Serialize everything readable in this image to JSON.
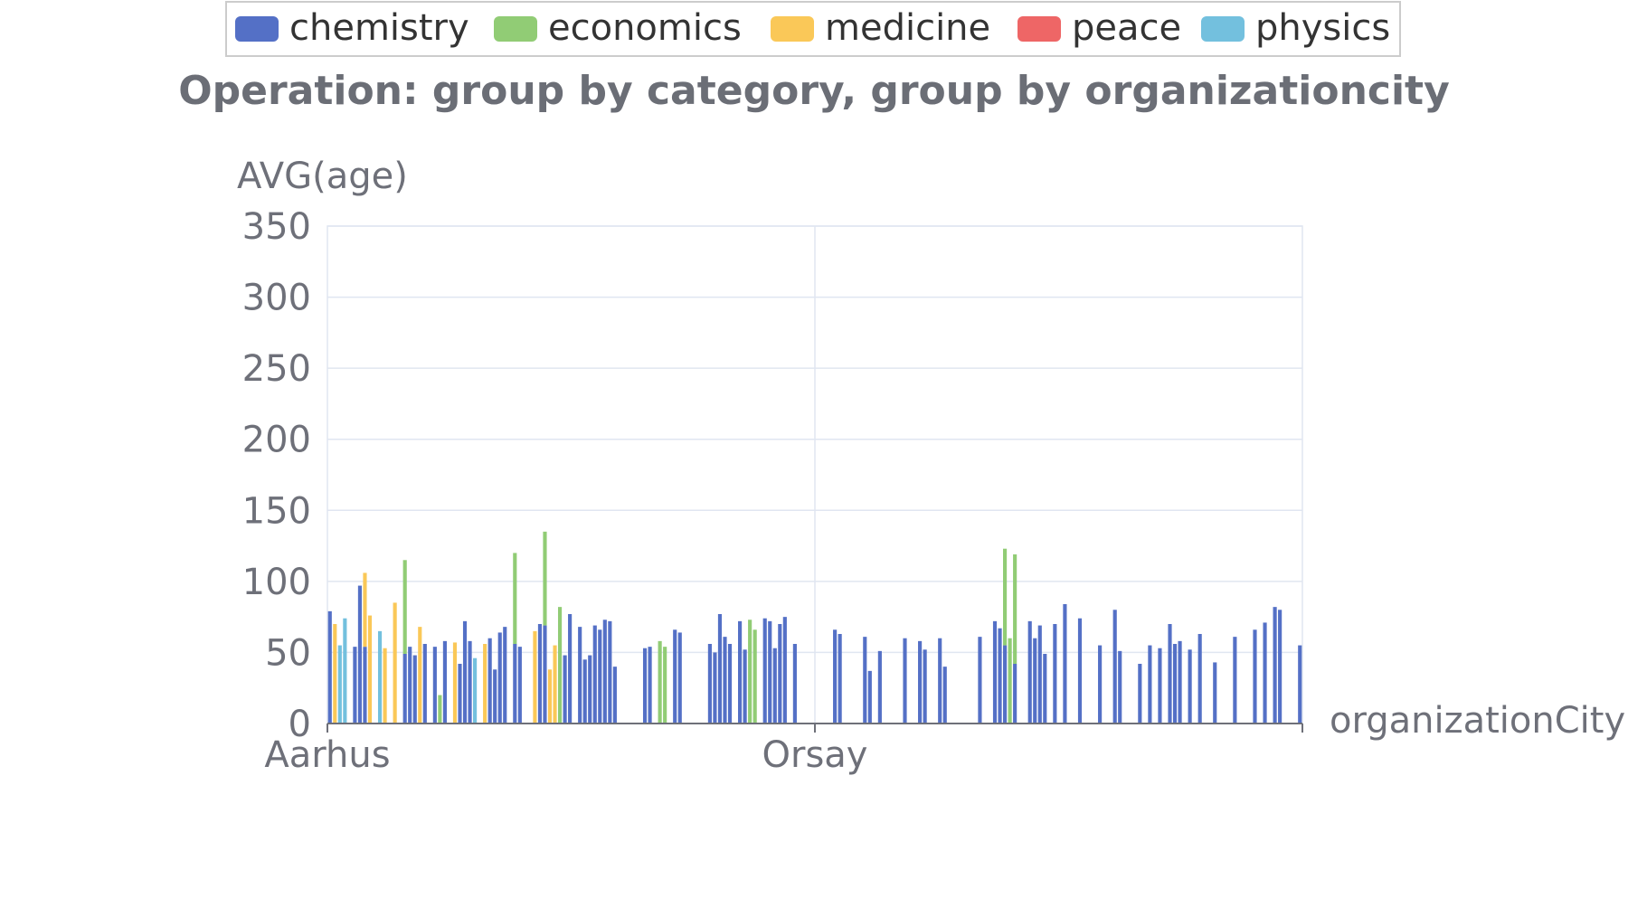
{
  "chart_data": {
    "type": "bar",
    "stacked": true,
    "title": "Operation: group by category, group by organizationcity",
    "ylabel": "AVG(age)",
    "xlabel": "organizationCity",
    "ylim": [
      0,
      350
    ],
    "yticks": [
      0,
      50,
      100,
      150,
      200,
      250,
      300,
      350
    ],
    "x_tick_labels": [
      "Aarhus",
      "Orsay"
    ],
    "legend_position": "top-center",
    "series": [
      {
        "name": "chemistry",
        "color": "#5470c6",
        "values": [
          79,
          0,
          0,
          0,
          0,
          54,
          97,
          54,
          0,
          0,
          0,
          0,
          0,
          0,
          0,
          49,
          54,
          48,
          0,
          56,
          0,
          54,
          0,
          58,
          0,
          0,
          42,
          72,
          58,
          0,
          0,
          0,
          60,
          38,
          64,
          68,
          0,
          56,
          54,
          0,
          0,
          0,
          70,
          69,
          0,
          0,
          0,
          48,
          77,
          0,
          68,
          45,
          48,
          69,
          66,
          73,
          72,
          40,
          0,
          0,
          0,
          0,
          0,
          53,
          54,
          0,
          0,
          0,
          0,
          66,
          64,
          0,
          0,
          0,
          0,
          0,
          56,
          50,
          77,
          61,
          56,
          0,
          72,
          52,
          0,
          0,
          0,
          74,
          72,
          53,
          70,
          75,
          0,
          56,
          0,
          0,
          0,
          0,
          0,
          0,
          0,
          66,
          63,
          0,
          0,
          0,
          0,
          61,
          37,
          0,
          51,
          0,
          0,
          0,
          0,
          60,
          0,
          0,
          58,
          52,
          0,
          0,
          60,
          40,
          0,
          0,
          0,
          0,
          0,
          0,
          61,
          0,
          0,
          72,
          67,
          55,
          0,
          42,
          0,
          0,
          72,
          60,
          69,
          49,
          0,
          70,
          0,
          84,
          0,
          0,
          74,
          0,
          0,
          0,
          55,
          0,
          0,
          80,
          51,
          0,
          0,
          0,
          42,
          0,
          55,
          0,
          53,
          0,
          70,
          56,
          58,
          0,
          52,
          0,
          63,
          0,
          0,
          43,
          0,
          0,
          0,
          61,
          0,
          0,
          0,
          66,
          0,
          71,
          0,
          82,
          80,
          0,
          0,
          0,
          55
        ]
      },
      {
        "name": "economics",
        "color": "#91cc75",
        "values": [
          0,
          0,
          0,
          0,
          0,
          0,
          0,
          0,
          0,
          0,
          0,
          0,
          0,
          0,
          0,
          66,
          0,
          0,
          0,
          0,
          0,
          0,
          20,
          0,
          0,
          0,
          0,
          0,
          0,
          0,
          0,
          0,
          0,
          0,
          0,
          0,
          0,
          64,
          0,
          0,
          0,
          0,
          0,
          66,
          0,
          0,
          82,
          0,
          0,
          0,
          0,
          0,
          0,
          0,
          0,
          0,
          0,
          0,
          0,
          0,
          0,
          0,
          0,
          0,
          0,
          0,
          58,
          54,
          0,
          0,
          0,
          0,
          0,
          0,
          0,
          0,
          0,
          0,
          0,
          0,
          0,
          0,
          0,
          0,
          73,
          66,
          0,
          0,
          0,
          0,
          0,
          0,
          0,
          0,
          0,
          0,
          0,
          0,
          0,
          0,
          0,
          0,
          0,
          0,
          0,
          0,
          0,
          0,
          0,
          0,
          0,
          0,
          0,
          0,
          0,
          0,
          0,
          0,
          0,
          0,
          0,
          0,
          0,
          0,
          0,
          0,
          0,
          0,
          0,
          0,
          0,
          0,
          0,
          0,
          0,
          68,
          60,
          77,
          0,
          0,
          0,
          0,
          0,
          0,
          0,
          0,
          0,
          0,
          0,
          0,
          0,
          0,
          0,
          0,
          0,
          0,
          0,
          0,
          0,
          0,
          0,
          0,
          0,
          0,
          0,
          0,
          0,
          0,
          0,
          0,
          0,
          0,
          0,
          0,
          0,
          0,
          0,
          0,
          0,
          0,
          0,
          0,
          0,
          0,
          0,
          0,
          0,
          0,
          0,
          0,
          0,
          0,
          0,
          0,
          0,
          0,
          0
        ]
      },
      {
        "name": "medicine",
        "color": "#fac858",
        "values": [
          0,
          70,
          0,
          0,
          0,
          0,
          0,
          52,
          76,
          0,
          0,
          53,
          0,
          85,
          0,
          0,
          0,
          0,
          68,
          0,
          0,
          0,
          0,
          0,
          0,
          57,
          0,
          0,
          0,
          0,
          0,
          56,
          0,
          0,
          0,
          0,
          0,
          0,
          0,
          0,
          0,
          65,
          0,
          0,
          38,
          55,
          0,
          0,
          0,
          0,
          0,
          0,
          0,
          0,
          0,
          0,
          0,
          0,
          0,
          0,
          0,
          0,
          0,
          0,
          0,
          0,
          0,
          0,
          0,
          0,
          0,
          0,
          0,
          0,
          0,
          0,
          0,
          0,
          0,
          0,
          0,
          0,
          0,
          0,
          0,
          0,
          0,
          0,
          0,
          0,
          0,
          0,
          0,
          0,
          0,
          0,
          0,
          0,
          0,
          0,
          0,
          0,
          0,
          0,
          0,
          0,
          0,
          0,
          0,
          0,
          0,
          0,
          0,
          0,
          0,
          0,
          0,
          0,
          0,
          0,
          0,
          0,
          0,
          0,
          0,
          0,
          0,
          0,
          0,
          0,
          0,
          0,
          0,
          0,
          0,
          0,
          0,
          0,
          0,
          0,
          0,
          0,
          0,
          0,
          0,
          0,
          0,
          0,
          0,
          0,
          0,
          0,
          0,
          0,
          0,
          0,
          0,
          0,
          0,
          0,
          0,
          0,
          0,
          0,
          0,
          0,
          0,
          0,
          0,
          0,
          0,
          0,
          0,
          0,
          0,
          0,
          0,
          0,
          0,
          0,
          0,
          0,
          0,
          0,
          0,
          0,
          0,
          0,
          0,
          0,
          0,
          0,
          0,
          0,
          0,
          0,
          0,
          0,
          0,
          0,
          0,
          0,
          0,
          0,
          0,
          0,
          0
        ]
      },
      {
        "name": "peace",
        "color": "#ee6666",
        "values": [
          0,
          0,
          0,
          0,
          0,
          0,
          0,
          0,
          0,
          0,
          0,
          0,
          0,
          0,
          0,
          0,
          0,
          0,
          0,
          0,
          0,
          0,
          0,
          0,
          0,
          0,
          0,
          0,
          0,
          0,
          0,
          0,
          0,
          0,
          0,
          0,
          0,
          0,
          0,
          0,
          0,
          0,
          0,
          0,
          0,
          0,
          0,
          0,
          0,
          0,
          0,
          0,
          0,
          0,
          0,
          0,
          0,
          0,
          0,
          0,
          0,
          0,
          0,
          0,
          0,
          0,
          0,
          0,
          0,
          0,
          0,
          0,
          0,
          0,
          0,
          0,
          0,
          0,
          0,
          0,
          0,
          0,
          0,
          0,
          0,
          0,
          0,
          0,
          0,
          0,
          0,
          0,
          0,
          0,
          0,
          0,
          0,
          0,
          0,
          0,
          0,
          0,
          0,
          0,
          0,
          0,
          0,
          0,
          0,
          0,
          0,
          0,
          0,
          0,
          0,
          0,
          0,
          0,
          0,
          0,
          0,
          0,
          0,
          0,
          0,
          0,
          0,
          0,
          0,
          0,
          0,
          0,
          0,
          0,
          0,
          0,
          0,
          0,
          0,
          0,
          0,
          0,
          0,
          0,
          0,
          0,
          0,
          0,
          0,
          0,
          0,
          0,
          0,
          0,
          0,
          0,
          0,
          0,
          0,
          0,
          0,
          0,
          0,
          0,
          0,
          0,
          0,
          0,
          0,
          0,
          0,
          0,
          0,
          0,
          0,
          0,
          0,
          0,
          0,
          0,
          0,
          0,
          0,
          0,
          0,
          0,
          0,
          0,
          0,
          0,
          0,
          0,
          0,
          0,
          0,
          0,
          0,
          0,
          0,
          0,
          0,
          0,
          0,
          0,
          0,
          0,
          0
        ]
      },
      {
        "name": "physics",
        "color": "#73c0de",
        "values": [
          0,
          0,
          55,
          74,
          0,
          0,
          0,
          0,
          0,
          0,
          65,
          0,
          0,
          0,
          0,
          0,
          0,
          0,
          0,
          0,
          0,
          0,
          0,
          0,
          0,
          0,
          0,
          0,
          0,
          46,
          0,
          0,
          0,
          0,
          0,
          0,
          0,
          0,
          0,
          0,
          0,
          0,
          0,
          0,
          0,
          0,
          0,
          0,
          0,
          0,
          0,
          0,
          0,
          0,
          0,
          0,
          0,
          0,
          0,
          0,
          0,
          0,
          0,
          0,
          0,
          0,
          0,
          0,
          0,
          0,
          0,
          0,
          0,
          0,
          0,
          0,
          0,
          0,
          0,
          0,
          0,
          0,
          0,
          0,
          0,
          0,
          0,
          0,
          0,
          0,
          0,
          0,
          0,
          0,
          0,
          0,
          0,
          0,
          0,
          0,
          0,
          0,
          0,
          0,
          0,
          0,
          0,
          0,
          0,
          0,
          0,
          0,
          0,
          0,
          0,
          0,
          0,
          0,
          0,
          0,
          0,
          0,
          0,
          0,
          0,
          0,
          0,
          0,
          0,
          0,
          0,
          0,
          0,
          0,
          0,
          0,
          0,
          0,
          0,
          0,
          0,
          0,
          0,
          0,
          0,
          0,
          0,
          0,
          0,
          0,
          0,
          0,
          0,
          0,
          0,
          0,
          0,
          0,
          0,
          0,
          0,
          0,
          0,
          0,
          0,
          0,
          0,
          0,
          0,
          0,
          0,
          0,
          0,
          0,
          0,
          0,
          0,
          0,
          0,
          0,
          0,
          0,
          0,
          0,
          0,
          0,
          0,
          0,
          0,
          0,
          0,
          0,
          0,
          0,
          0,
          0,
          0,
          0,
          0,
          0,
          0,
          0,
          0,
          0,
          0,
          0,
          0
        ]
      }
    ]
  }
}
